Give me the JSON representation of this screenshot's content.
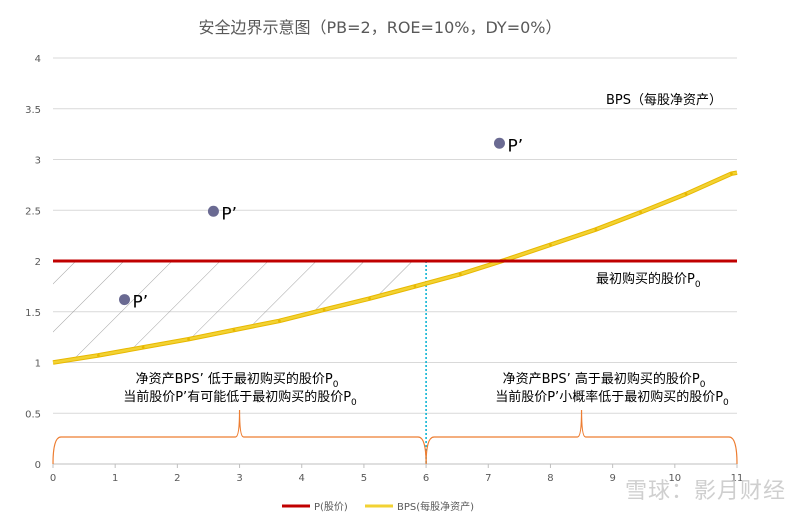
{
  "chart_data": {
    "type": "line",
    "title": "安全边界示意图（PB=2，ROE=10%，DY=0%）",
    "xlabel": "",
    "ylabel": "",
    "xlim": [
      0,
      11
    ],
    "ylim": [
      0,
      4
    ],
    "x_ticks": [
      "0",
      "1",
      "2",
      "3",
      "4",
      "5",
      "6",
      "7",
      "8",
      "9",
      "10",
      "11"
    ],
    "y_ticks": [
      "0",
      "0.5",
      "1",
      "1.5",
      "2",
      "2.5",
      "3",
      "3.5",
      "4"
    ],
    "grid": "horizontal",
    "legend_position": "bottom",
    "colors": {
      "price": "#c00000",
      "bps": "#f2d233",
      "bps_outline": "#e8b800",
      "cross": "#00b0d0",
      "points": "#6a6a92",
      "brace": "#ed7d31",
      "axis": "#bfbfbf",
      "grid": "#d9d9d9",
      "title": "#595959",
      "text": "#000000"
    },
    "series": [
      {
        "name": "P(股价)",
        "x": [
          0,
          11
        ],
        "values": [
          2,
          2
        ]
      },
      {
        "name": "BPS(每股净资产)",
        "x": [
          0,
          0.73,
          1.45,
          2.18,
          2.91,
          3.64,
          4.36,
          5.09,
          5.82,
          6.55,
          7.27,
          8.0,
          8.73,
          9.45,
          10.18,
          10.91,
          11.0
        ],
        "values": [
          1.0,
          1.07,
          1.15,
          1.23,
          1.32,
          1.41,
          1.52,
          1.63,
          1.75,
          1.87,
          2.01,
          2.16,
          2.31,
          2.48,
          2.66,
          2.86,
          2.87
        ]
      }
    ],
    "points": [
      {
        "label": "P’",
        "x": 1.15,
        "y": 1.62
      },
      {
        "label": "P’",
        "x": 2.58,
        "y": 2.49
      },
      {
        "label": "P’",
        "x": 7.18,
        "y": 3.16
      }
    ],
    "crossover_x": 6,
    "annotations": {
      "bps_curve": "BPS（每股净资产）",
      "initial_price": "最初购买的股价P",
      "subscript": "0",
      "left_line1": "净资产BPS’ 低于最初购买的股价P",
      "left_line2": "当前股价P’有可能低于最初购买的股价P",
      "right_line1": "净资产BPS’ 高于最初购买的股价P",
      "right_line2": "当前股价P’小概率低于最初购买的股价P"
    },
    "legend": [
      "P(股价)",
      "BPS(每股净资产)"
    ]
  },
  "watermark": "雪球：影月财经"
}
